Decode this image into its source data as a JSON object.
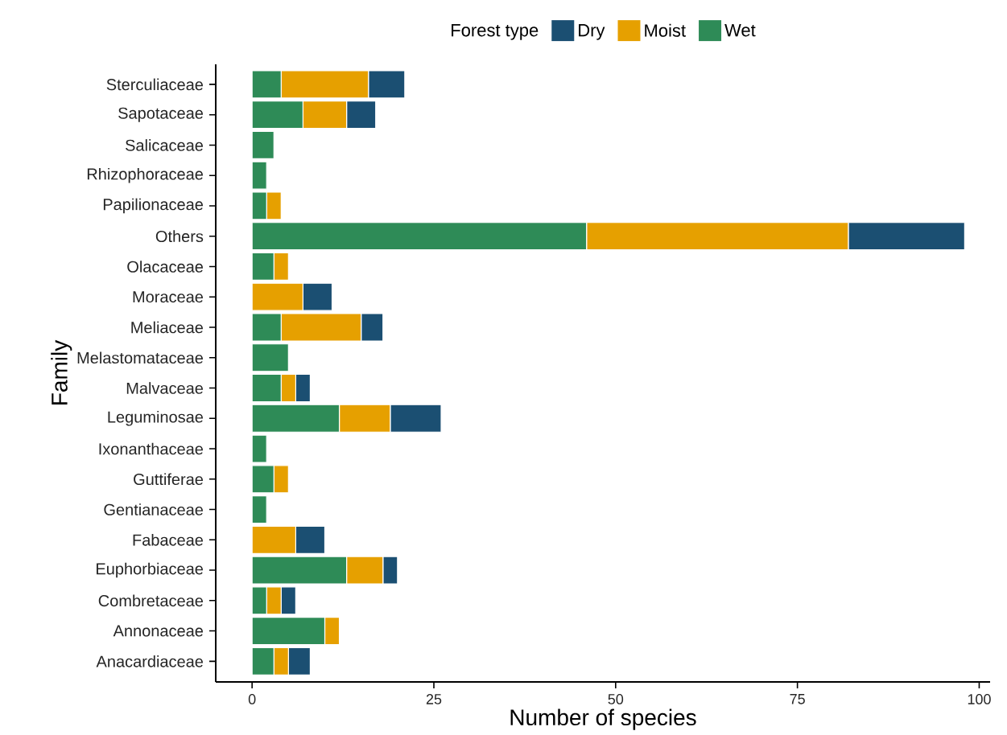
{
  "chart_data": {
    "type": "bar",
    "orientation": "horizontal",
    "stacked": true,
    "xlabel": "Number of species",
    "ylabel": "Family",
    "legend_title": "Forest type",
    "legend": "top",
    "categories": [
      "Sterculiaceae",
      "Sapotaceae",
      "Salicaceae",
      "Rhizophoraceae",
      "Papilionaceae",
      "Others",
      "Olacaceae",
      "Moraceae",
      "Meliaceae",
      "Melastomataceae",
      "Malvaceae",
      "Leguminosae",
      "Ixonanthaceae",
      "Guttiferae",
      "Gentianaceae",
      "Fabaceae",
      "Euphorbiaceae",
      "Combretaceae",
      "Annonaceae",
      "Anacardiaceae"
    ],
    "series": [
      {
        "name": "Wet",
        "color": "#2e8b57",
        "values": [
          4,
          7,
          3,
          2,
          2,
          46,
          3,
          0,
          4,
          5,
          4,
          12,
          2,
          3,
          2,
          0,
          13,
          2,
          10,
          3
        ]
      },
      {
        "name": "Moist",
        "color": "#e6a000",
        "values": [
          12,
          6,
          0,
          0,
          2,
          36,
          2,
          7,
          11,
          0,
          2,
          7,
          0,
          2,
          0,
          6,
          5,
          2,
          2,
          2
        ]
      },
      {
        "name": "Dry",
        "color": "#1b4f72",
        "values": [
          5,
          4,
          0,
          0,
          0,
          16,
          0,
          4,
          3,
          0,
          2,
          7,
          0,
          0,
          0,
          4,
          2,
          2,
          0,
          3
        ]
      }
    ],
    "xlim": [
      -5,
      101.5
    ],
    "xticks": [
      0,
      25,
      50,
      75,
      100
    ]
  }
}
